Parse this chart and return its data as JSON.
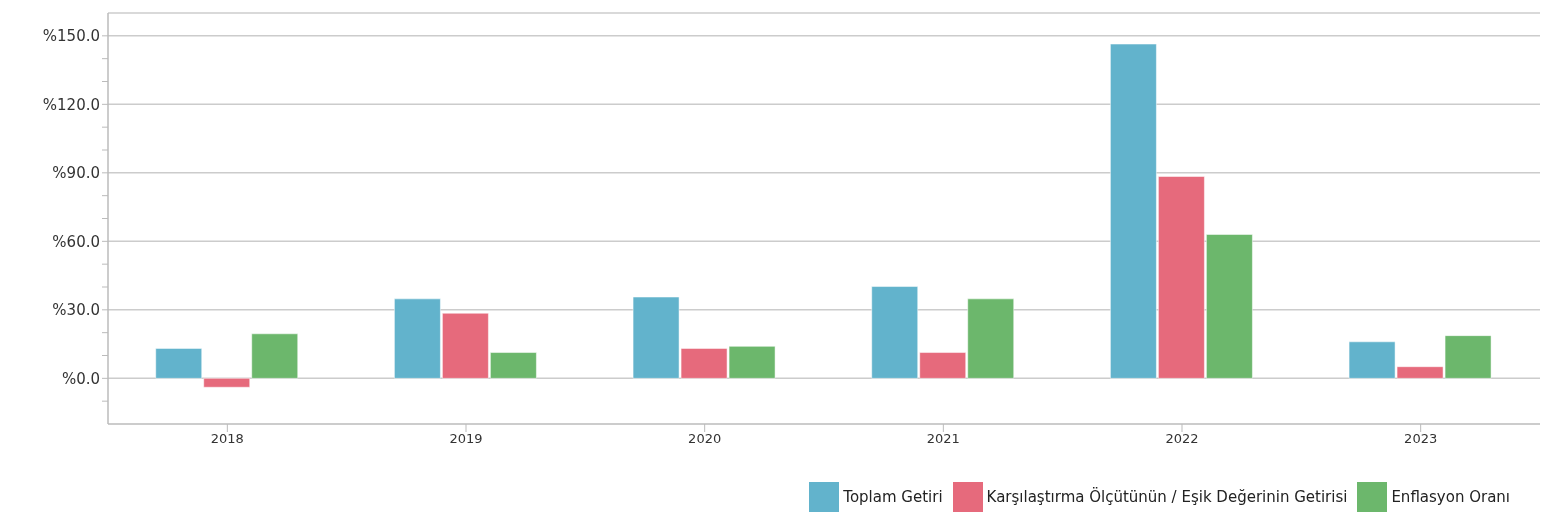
{
  "chart_data": {
    "type": "bar",
    "categories": [
      "2018",
      "2019",
      "2020",
      "2021",
      "2022",
      "2023"
    ],
    "series": [
      {
        "name": "Toplam Getiri",
        "color": "#62b3cc",
        "values": [
          13.1,
          34.8,
          35.6,
          40.2,
          146.4,
          16.0
        ]
      },
      {
        "name": "Karşılaştırma Ölçütünün / Eşik Değerinin Getirisi",
        "color": "#e66a7c",
        "values": [
          -3.9,
          28.5,
          13.1,
          11.3,
          88.4,
          5.1
        ]
      },
      {
        "name": "Enflasyon Oranı",
        "color": "#6cb76c",
        "values": [
          19.5,
          11.3,
          14.0,
          34.8,
          63.0,
          18.7
        ]
      }
    ],
    "ylim": [
      -20,
      160
    ],
    "yticks": [
      {
        "value": -10,
        "label": null
      },
      {
        "value": 0,
        "label": "%0.0"
      },
      {
        "value": 10,
        "label": null
      },
      {
        "value": 20,
        "label": null
      },
      {
        "value": 30,
        "label": "%30.0"
      },
      {
        "value": 40,
        "label": null
      },
      {
        "value": 50,
        "label": null
      },
      {
        "value": 60,
        "label": "%60.0"
      },
      {
        "value": 70,
        "label": null
      },
      {
        "value": 80,
        "label": null
      },
      {
        "value": 90,
        "label": "%90.0"
      },
      {
        "value": 100,
        "label": null
      },
      {
        "value": 110,
        "label": null
      },
      {
        "value": 120,
        "label": "%120.0"
      },
      {
        "value": 130,
        "label": null
      },
      {
        "value": 140,
        "label": null
      },
      {
        "value": 150,
        "label": "%150.0"
      }
    ],
    "grid": "y",
    "legend": "bottom right"
  }
}
